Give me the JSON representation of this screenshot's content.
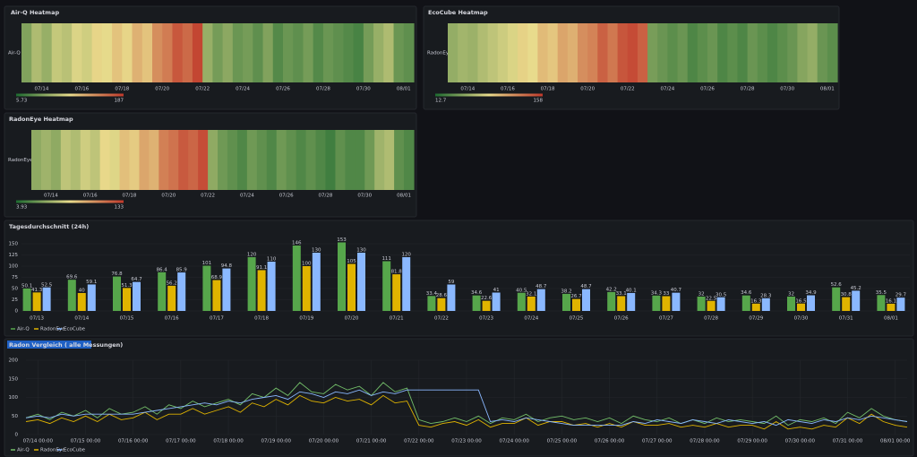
{
  "chart_data": [
    {
      "type": "heatmap",
      "title": "Air-Q Heatmap",
      "rows": [
        "Air-Q"
      ],
      "zlim": [
        5.73,
        187
      ],
      "colors": [
        "#1d6b30",
        "#e9dc8c",
        "#c0392b"
      ],
      "xticks": [
        "07/14",
        "07/16",
        "07/18",
        "07/20",
        "07/22",
        "07/24",
        "07/26",
        "07/28",
        "07/30",
        "08/01"
      ],
      "values": [
        50,
        70,
        60,
        80,
        75,
        90,
        85,
        100,
        95,
        110,
        100,
        120,
        110,
        140,
        150,
        170,
        160,
        180,
        60,
        45,
        55,
        40,
        45,
        35,
        50,
        30,
        40,
        35,
        45,
        30,
        40,
        35,
        30,
        25,
        45,
        60,
        70,
        40,
        35
      ]
    },
    {
      "type": "heatmap",
      "title": "EcoCube Heatmap",
      "rows": [
        "RadonEye"
      ],
      "zlim": [
        12.7,
        158
      ],
      "colors": [
        "#1d6b30",
        "#e9dc8c",
        "#c0392b"
      ],
      "xticks": [
        "07/14",
        "07/16",
        "07/18",
        "07/20",
        "07/22",
        "07/24",
        "07/26",
        "07/28",
        "07/30",
        "08/01"
      ],
      "values": [
        55,
        60,
        58,
        65,
        70,
        75,
        80,
        90,
        85,
        100,
        95,
        110,
        105,
        120,
        125,
        140,
        130,
        145,
        150,
        140,
        45,
        40,
        35,
        40,
        30,
        35,
        40,
        30,
        35,
        30,
        40,
        35,
        30,
        35,
        40,
        50,
        55,
        40,
        35
      ]
    },
    {
      "type": "heatmap",
      "title": "RadonEye Heatmap",
      "rows": [
        "RadonEye"
      ],
      "zlim": [
        3.93,
        133
      ],
      "colors": [
        "#1d6b30",
        "#e9dc8c",
        "#c0392b"
      ],
      "xticks": [
        "07/14",
        "07/16",
        "07/18",
        "07/20",
        "07/22",
        "07/24",
        "07/26",
        "07/28",
        "07/30",
        "08/01"
      ],
      "values": [
        40,
        45,
        40,
        55,
        50,
        60,
        55,
        70,
        65,
        80,
        75,
        90,
        85,
        105,
        110,
        120,
        115,
        125,
        40,
        30,
        25,
        20,
        30,
        25,
        20,
        30,
        25,
        20,
        25,
        20,
        15,
        25,
        20,
        20,
        30,
        45,
        50,
        25,
        20
      ]
    },
    {
      "type": "bar",
      "title": "Tagesdurchschnitt (24h)",
      "legend": "bottom-left",
      "grid": true,
      "categories": [
        "07/13",
        "07/14",
        "07/15",
        "07/16",
        "07/17",
        "07/18",
        "07/19",
        "07/20",
        "07/21",
        "07/22",
        "07/23",
        "07/24",
        "07/25",
        "07/26",
        "07/27",
        "07/28",
        "07/29",
        "07/30",
        "07/31",
        "08/01"
      ],
      "ylim": [
        0,
        160
      ],
      "yticks": [
        0,
        25,
        50,
        75,
        100,
        125,
        150
      ],
      "series": [
        {
          "name": "Air-Q",
          "color": "#56a64b",
          "values": [
            50.1,
            69.6,
            76.8,
            86.4,
            101,
            120,
            146,
            153,
            111,
            33.4,
            34.6,
            40.5,
            38.2,
            42.2,
            34.3,
            32.0,
            34.6,
            32.0,
            52.6,
            35.5
          ]
        },
        {
          "name": "RadonEye",
          "color": "#e0b400",
          "values": [
            41.3,
            40.0,
            51.3,
            56.2,
            68.9,
            91.1,
            100,
            105,
            81.8,
            28.6,
            22.6,
            32.1,
            26.7,
            33.1,
            33.0,
            22.5,
            16.3,
            16.5,
            30.8,
            16.1
          ]
        },
        {
          "name": "EcoCube",
          "color": "#8ab8ff",
          "values": [
            52.5,
            59.1,
            64.7,
            85.9,
            94.8,
            110,
            130,
            130,
            120,
            59.0,
            41.0,
            48.7,
            48.7,
            40.1,
            40.7,
            30.5,
            28.3,
            34.9,
            45.2,
            29.7
          ]
        }
      ]
    },
    {
      "type": "line",
      "title": "Radon Vergleich ( alle Messungen)",
      "legend": "bottom-left",
      "grid": true,
      "ylim": [
        0,
        200
      ],
      "yticks": [
        0,
        50,
        100,
        150,
        200
      ],
      "x": [
        "07/13 18:00",
        "07/14 00:00",
        "07/14 06:00",
        "07/14 12:00",
        "07/14 18:00",
        "07/15 00:00",
        "07/15 06:00",
        "07/15 12:00",
        "07/15 18:00",
        "07/16 00:00",
        "07/16 06:00",
        "07/16 12:00",
        "07/16 18:00",
        "07/17 00:00",
        "07/17 06:00",
        "07/17 12:00",
        "07/17 18:00",
        "07/18 00:00",
        "07/18 06:00",
        "07/18 12:00",
        "07/18 18:00",
        "07/19 00:00",
        "07/19 06:00",
        "07/19 12:00",
        "07/19 18:00",
        "07/20 00:00",
        "07/20 06:00",
        "07/20 12:00",
        "07/20 18:00",
        "07/21 00:00",
        "07/21 06:00",
        "07/21 12:00",
        "07/21 18:00",
        "07/22 00:00",
        "07/22 06:00",
        "07/22 12:00",
        "07/22 18:00",
        "07/23 00:00",
        "07/23 06:00",
        "07/23 12:00",
        "07/23 18:00",
        "07/24 00:00",
        "07/24 06:00",
        "07/24 12:00",
        "07/24 18:00",
        "07/25 00:00",
        "07/25 06:00",
        "07/25 12:00",
        "07/25 18:00",
        "07/26 00:00",
        "07/26 06:00",
        "07/26 12:00",
        "07/26 18:00",
        "07/27 00:00",
        "07/27 06:00",
        "07/27 12:00",
        "07/27 18:00",
        "07/28 00:00",
        "07/28 06:00",
        "07/28 12:00",
        "07/28 18:00",
        "07/29 00:00",
        "07/29 06:00",
        "07/29 12:00",
        "07/29 18:00",
        "07/30 00:00",
        "07/30 06:00",
        "07/30 12:00",
        "07/30 18:00",
        "07/31 00:00",
        "07/31 06:00",
        "07/31 12:00",
        "07/31 18:00",
        "08/01 00:00",
        "08/01 06:00"
      ],
      "series": [
        {
          "name": "Air-Q",
          "color": "#73bf69",
          "values": [
            45,
            55,
            40,
            60,
            50,
            65,
            45,
            70,
            55,
            60,
            75,
            55,
            80,
            70,
            90,
            75,
            85,
            95,
            80,
            110,
            100,
            125,
            105,
            140,
            115,
            110,
            135,
            120,
            130,
            105,
            140,
            115,
            125,
            40,
            30,
            35,
            45,
            35,
            50,
            30,
            45,
            40,
            55,
            35,
            45,
            50,
            40,
            45,
            35,
            45,
            30,
            50,
            40,
            35,
            45,
            30,
            40,
            30,
            45,
            35,
            40,
            35,
            30,
            50,
            25,
            40,
            35,
            45,
            30,
            60,
            45,
            70,
            50,
            40,
            35
          ]
        },
        {
          "name": "RadonEye",
          "color": "#e0b400",
          "values": [
            35,
            40,
            30,
            45,
            35,
            50,
            35,
            55,
            40,
            45,
            60,
            40,
            55,
            55,
            70,
            55,
            65,
            75,
            60,
            85,
            75,
            95,
            80,
            105,
            90,
            85,
            100,
            90,
            95,
            80,
            105,
            85,
            90,
            25,
            20,
            30,
            35,
            25,
            40,
            20,
            30,
            30,
            45,
            25,
            35,
            35,
            25,
            30,
            20,
            30,
            20,
            35,
            25,
            25,
            30,
            20,
            25,
            20,
            30,
            20,
            25,
            25,
            15,
            35,
            15,
            20,
            15,
            25,
            20,
            45,
            30,
            55,
            35,
            25,
            20
          ]
        },
        {
          "name": "EcoCube",
          "color": "#8ab8ff",
          "values": [
            45,
            50,
            45,
            55,
            50,
            55,
            55,
            55,
            55,
            55,
            60,
            65,
            70,
            75,
            80,
            85,
            80,
            90,
            85,
            95,
            100,
            105,
            95,
            115,
            110,
            100,
            115,
            110,
            120,
            105,
            115,
            110,
            120,
            120,
            120,
            120,
            120,
            120,
            120,
            35,
            40,
            35,
            45,
            40,
            35,
            30,
            25,
            25,
            25,
            25,
            25,
            35,
            30,
            40,
            35,
            30,
            40,
            35,
            30,
            40,
            35,
            30,
            35,
            25,
            40,
            35,
            30,
            40,
            35,
            45,
            40,
            50,
            45,
            40,
            35
          ]
        }
      ]
    }
  ]
}
